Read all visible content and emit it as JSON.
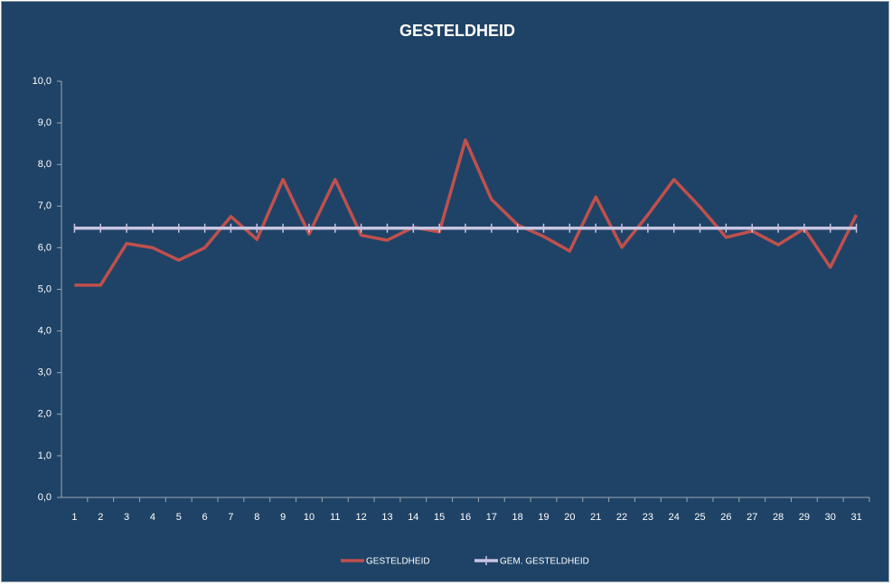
{
  "chart_data": {
    "type": "line",
    "title": "GESTELDHEID",
    "categories": [
      "1",
      "2",
      "3",
      "4",
      "5",
      "6",
      "7",
      "8",
      "9",
      "10",
      "11",
      "12",
      "13",
      "14",
      "15",
      "16",
      "17",
      "18",
      "19",
      "20",
      "21",
      "22",
      "23",
      "24",
      "25",
      "26",
      "27",
      "28",
      "29",
      "30",
      "31"
    ],
    "series": [
      {
        "name": "GESTELDHEID",
        "color": "#c0504d",
        "values": [
          5.1,
          5.1,
          6.1,
          6.0,
          5.7,
          6.0,
          6.75,
          6.2,
          7.64,
          6.33,
          7.64,
          6.3,
          6.18,
          6.49,
          6.38,
          8.59,
          7.16,
          6.55,
          6.27,
          5.92,
          7.22,
          6.01,
          6.79,
          7.64,
          6.98,
          6.25,
          6.4,
          6.07,
          6.46,
          5.53,
          6.79
        ]
      },
      {
        "name": "GEM. GESTELDHEID",
        "color": "#c8c5e2",
        "values": [
          6.47,
          6.47,
          6.47,
          6.47,
          6.47,
          6.47,
          6.47,
          6.47,
          6.47,
          6.47,
          6.47,
          6.47,
          6.47,
          6.47,
          6.47,
          6.47,
          6.47,
          6.47,
          6.47,
          6.47,
          6.47,
          6.47,
          6.47,
          6.47,
          6.47,
          6.47,
          6.47,
          6.47,
          6.47,
          6.47,
          6.47
        ]
      }
    ],
    "ylim": [
      0,
      10
    ],
    "yticks": [
      {
        "value": 0,
        "label": "0,0"
      },
      {
        "value": 1,
        "label": "1,0"
      },
      {
        "value": 2,
        "label": "2,0"
      },
      {
        "value": 3,
        "label": "3,0"
      },
      {
        "value": 4,
        "label": "4,0"
      },
      {
        "value": 5,
        "label": "5,0"
      },
      {
        "value": 6,
        "label": "6,0"
      },
      {
        "value": 7,
        "label": "7,0"
      },
      {
        "value": 8,
        "label": "8,0"
      },
      {
        "value": 9,
        "label": "9,0"
      },
      {
        "value": 10,
        "label": "10,0"
      }
    ],
    "grid": false,
    "legend": "bottom"
  }
}
